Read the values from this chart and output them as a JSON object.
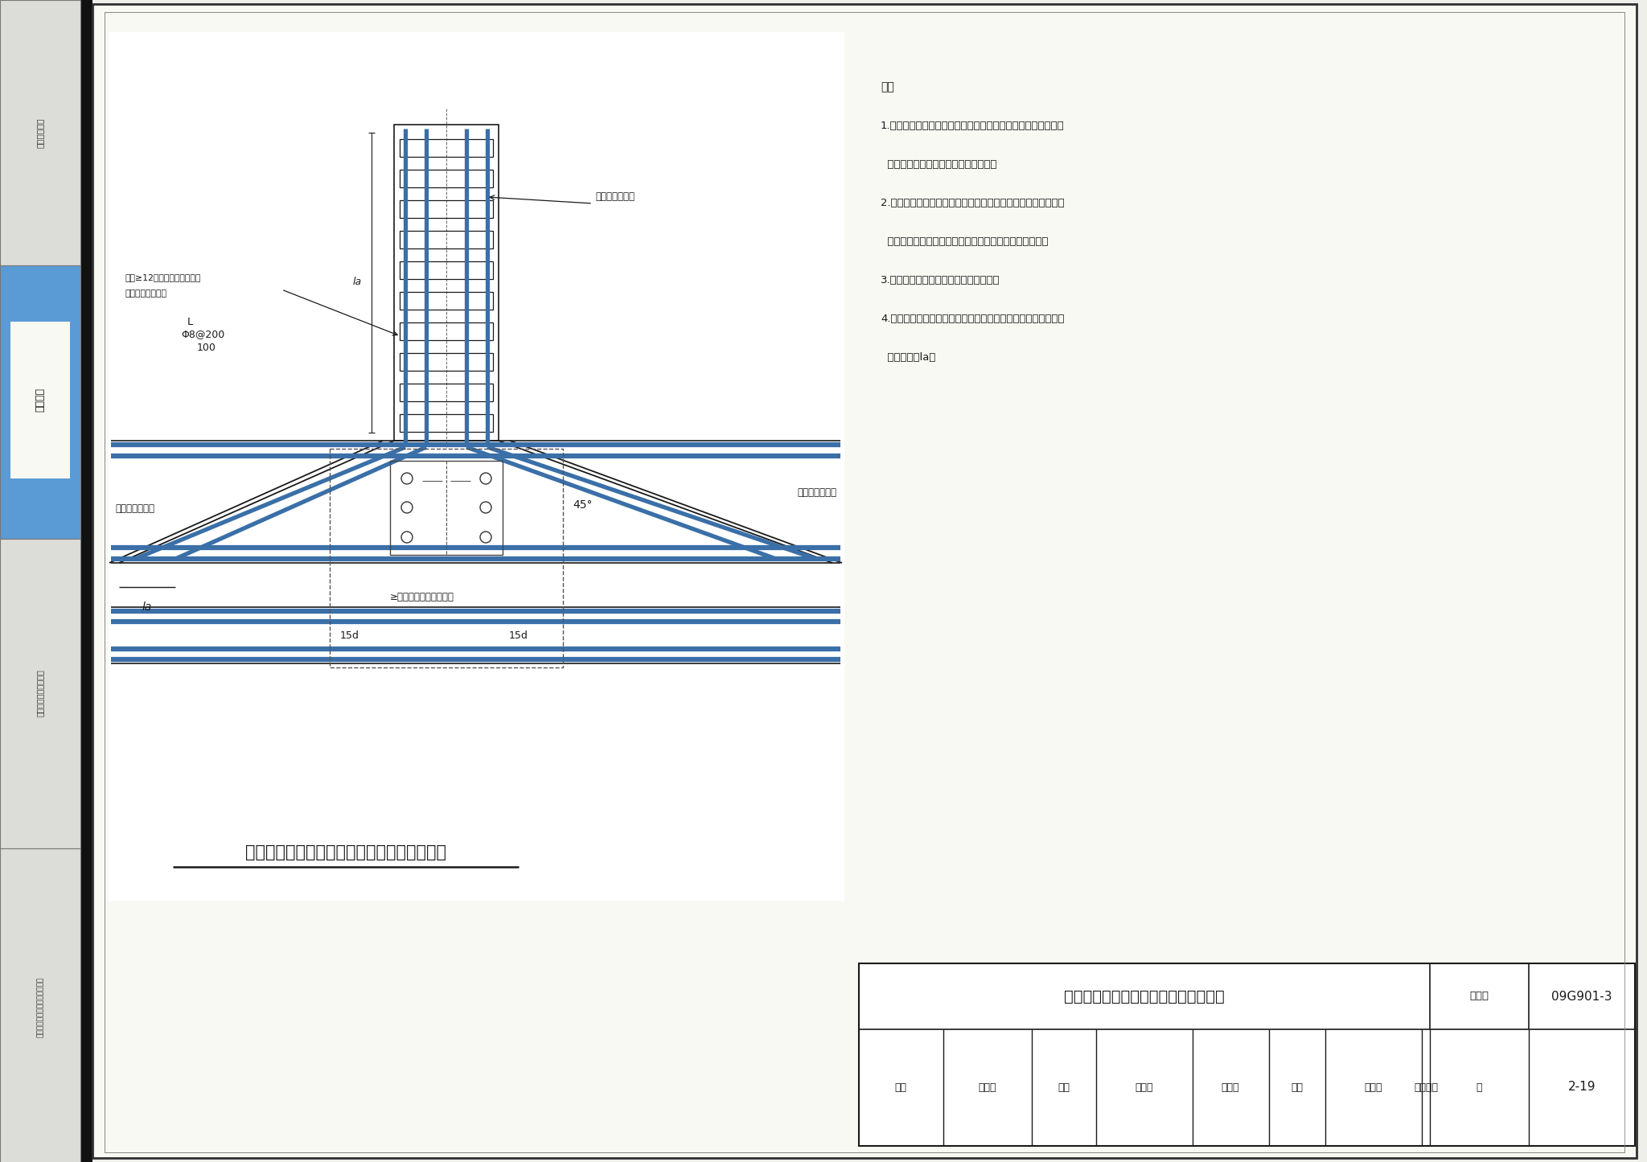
{
  "bg_color": "#efefea",
  "page_bg": "#f8f8f3",
  "dark": "#1a1a1a",
  "steel_blue": "#3a6fa8",
  "blue_sidebar": "#5b9bd5",
  "sidebar1": "一般构造要求",
  "sidebar2": "筏形基础",
  "sidebar3": "箱形基础和地下室结构",
  "sidebar4": "独立基础、条形基础、桩基承台",
  "title_main": "基础主梁偏心穿柱与柱结合部位钢筋排布构造",
  "title_bottom": "基础主梁与柱结合部侧腹钢筋排布构造",
  "atlas_num": "09G901-3",
  "page_num": "2-19",
  "note0": "注：",
  "note1": "1.除基础梁比柱宽且完全形成梁包柱的情况外，所有基础主梁与",
  "note1b": "  柱结合部位均按本图的构造排布钢筋。",
  "note2": "2.当实际工程与本图不同时，其构造应由设计者设计；若要求施",
  "note2b": "  工方面参照本图集排布钢筋时，应提供相应的变更说明。",
  "note3": "3.同一节点的各边侧腹尺及配筋均相同。",
  "note4": "4.当设计注明基础梁中的侧面钢筋为抗扭钢筋且未贯通施工时，",
  "note4b": "  锚固长度为la。",
  "lbl_side_top": "基础梁侧面钢筋",
  "lbl_side_left": "基础梁侧面钢筋",
  "lbl_side_right": "基础梁侧面钢筋",
  "lbl_dia1": "直径≥12且不小于柱箍筋直径",
  "lbl_dia2": "间距同柱箍筋间距",
  "lbl_stirrup": "Φ8@200",
  "lbl_L": "L",
  "lbl_100": "100",
  "lbl_15d": "15d",
  "lbl_45": "45°",
  "lbl_max": "≥梁纵向钢筋的最大直径",
  "lbl_la": "la",
  "col_reviewer": "审核",
  "reviewer": "黄志刚",
  "col_checker": "校对",
  "checker": "张工文",
  "check_sign": "张之之",
  "col_designer": "设计",
  "designer": "王怀元",
  "design_sign": "王怀元之",
  "col_page": "页",
  "col_atlas": "图集号"
}
